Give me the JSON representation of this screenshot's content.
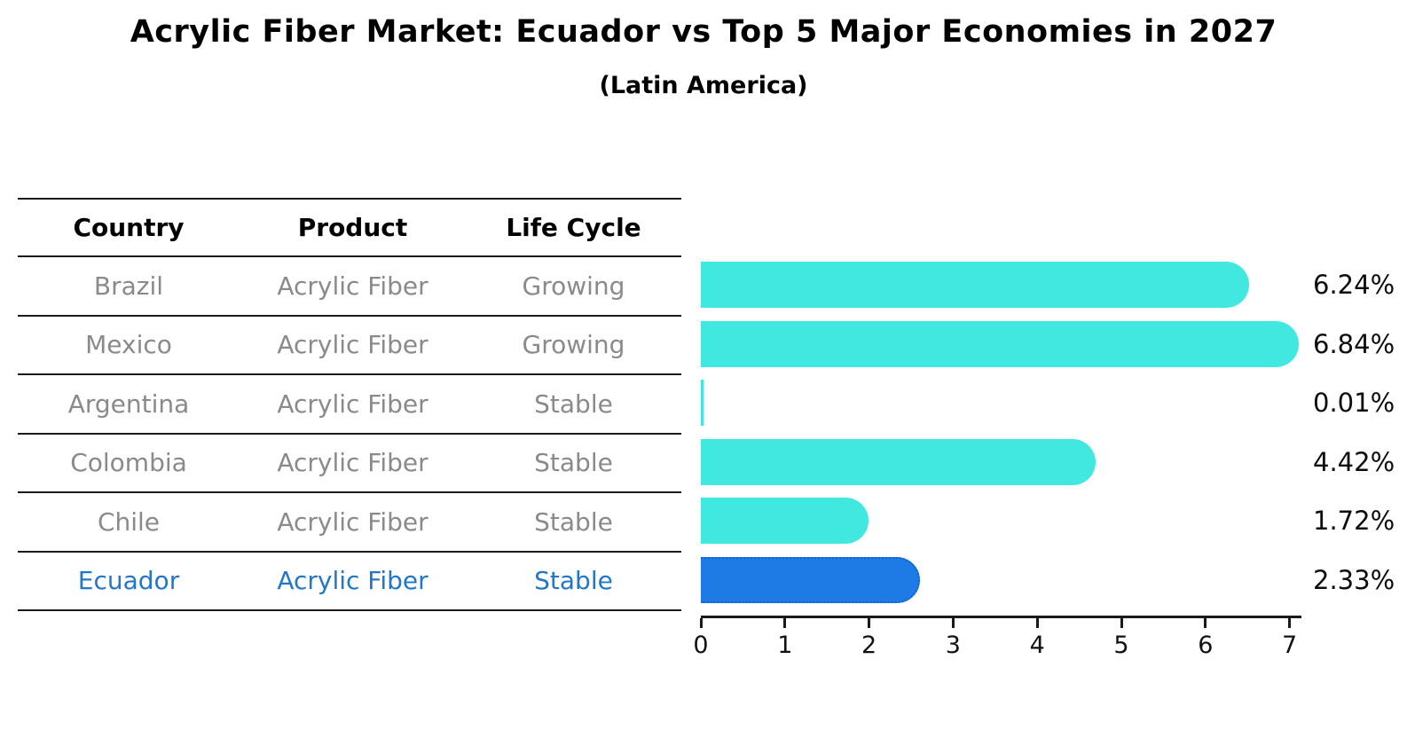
{
  "title": "Acrylic Fiber Market: Ecuador vs Top 5 Major Economies in 2027",
  "subtitle": "(Latin America)",
  "colors": {
    "bar_default": "#40e8e0",
    "bar_highlight": "#1e7ae5",
    "bar_highlight_border": "#1261d1",
    "highlight_text": "#2177cc",
    "table_text": "#8a8a8a",
    "axis_text": "#111111"
  },
  "table": {
    "headers": [
      "Country",
      "Product",
      "Life Cycle"
    ],
    "rows": [
      {
        "country": "Brazil",
        "product": "Acrylic Fiber",
        "life_cycle": "Growing",
        "highlighted": false
      },
      {
        "country": "Mexico",
        "product": "Acrylic Fiber",
        "life_cycle": "Growing",
        "highlighted": false
      },
      {
        "country": "Argentina",
        "product": "Acrylic Fiber",
        "life_cycle": "Stable",
        "highlighted": false
      },
      {
        "country": "Colombia",
        "product": "Acrylic Fiber",
        "life_cycle": "Stable",
        "highlighted": false
      },
      {
        "country": "Chile",
        "product": "Acrylic Fiber",
        "life_cycle": "Stable",
        "highlighted": false
      },
      {
        "country": "Ecuador",
        "product": "Acrylic Fiber",
        "life_cycle": "Stable",
        "highlighted": true
      }
    ]
  },
  "chart_data": {
    "type": "bar",
    "orientation": "horizontal",
    "title": "Acrylic Fiber Market: Ecuador vs Top 5 Major Economies in 2027",
    "subtitle": "(Latin America)",
    "categories": [
      "Brazil",
      "Mexico",
      "Argentina",
      "Colombia",
      "Chile",
      "Ecuador"
    ],
    "values": [
      6.24,
      6.84,
      0.01,
      4.42,
      1.72,
      2.33
    ],
    "value_labels": [
      "6.24%",
      "6.84%",
      "0.01%",
      "4.42%",
      "1.72%",
      "2.33%"
    ],
    "highlighted_category": "Ecuador",
    "xlabel": "",
    "ylabel": "",
    "xlim": [
      0,
      7.14
    ],
    "xticks": [
      0,
      1,
      2,
      3,
      4,
      5,
      6,
      7
    ],
    "grid": false,
    "legend": false
  }
}
